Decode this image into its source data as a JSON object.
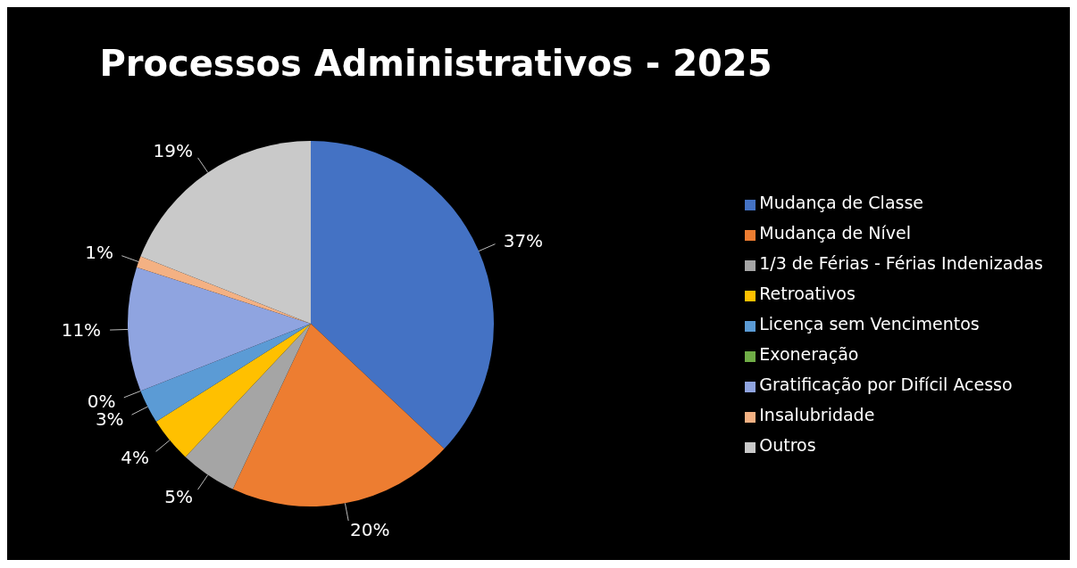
{
  "chart_data": {
    "type": "pie",
    "title": "Processos Administrativos - 2025",
    "categories": [
      "Mudança de Classe",
      "Mudança de Nível",
      "1/3 de Férias - Férias Indenizadas",
      "Retroativos",
      "Licença sem Vencimentos",
      "Exoneração",
      "Gratificação por Difícil Acesso",
      "Insalubridade",
      "Outros"
    ],
    "values": [
      37,
      20,
      5,
      4,
      3,
      0,
      11,
      1,
      19
    ],
    "value_labels": [
      "37%",
      "20%",
      "5%",
      "4%",
      "3%",
      "0%",
      "11%",
      "1%",
      "19%"
    ],
    "colors": [
      "#4472c4",
      "#ed7d31",
      "#a5a5a5",
      "#ffc000",
      "#5b9bd5",
      "#70ad47",
      "#8fa4e0",
      "#f4b183",
      "#c9c9c9"
    ],
    "legend": "right"
  }
}
